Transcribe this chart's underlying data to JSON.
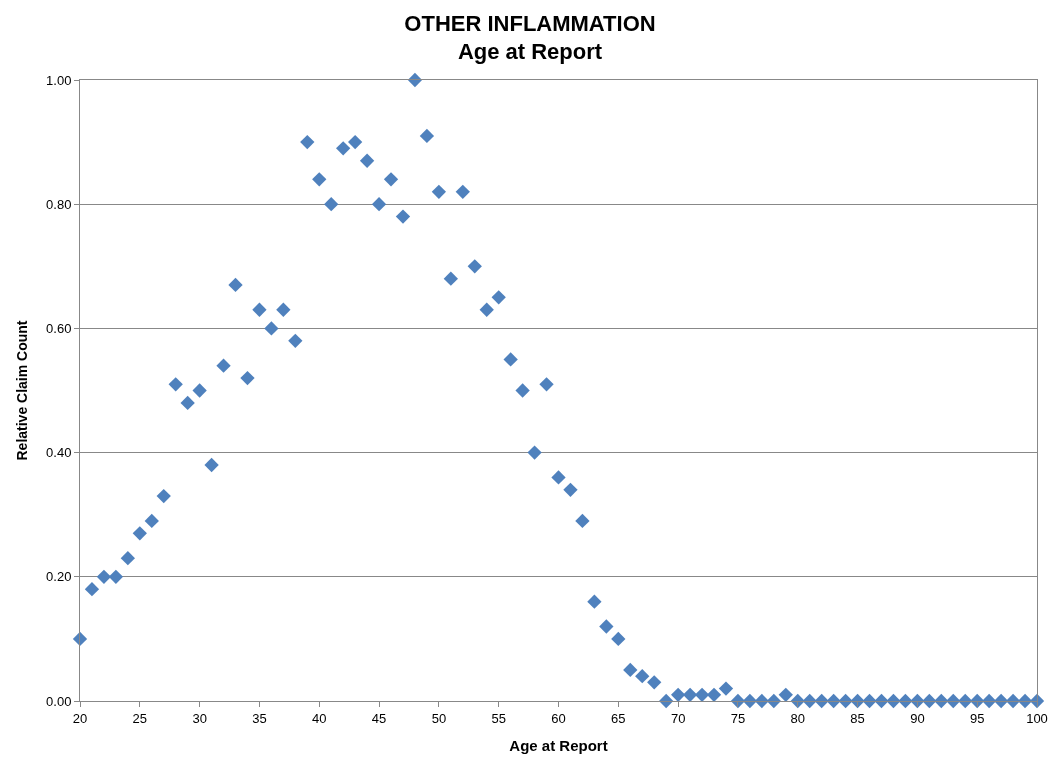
{
  "chart_data": {
    "type": "scatter",
    "title": "OTHER INFLAMMATION\nAge at Report",
    "xlabel": "Age at Report",
    "ylabel": "Relative Claim Count",
    "x": [
      20,
      21,
      22,
      23,
      24,
      25,
      26,
      27,
      28,
      29,
      30,
      31,
      32,
      33,
      34,
      35,
      36,
      37,
      38,
      39,
      40,
      41,
      42,
      43,
      44,
      45,
      46,
      47,
      48,
      49,
      50,
      51,
      52,
      53,
      54,
      55,
      56,
      57,
      58,
      59,
      60,
      61,
      62,
      63,
      64,
      65,
      66,
      67,
      68,
      69,
      70,
      71,
      72,
      73,
      74,
      75,
      76,
      77,
      78,
      79,
      80,
      81,
      82,
      83,
      84,
      85,
      86,
      87,
      88,
      89,
      90,
      91,
      92,
      93,
      94,
      95,
      96,
      97,
      98,
      99,
      100
    ],
    "series": [
      {
        "color": "#4f81bd",
        "values": [
          0.1,
          0.18,
          0.2,
          0.2,
          0.23,
          0.27,
          0.29,
          0.33,
          0.51,
          0.48,
          0.5,
          0.38,
          0.54,
          0.67,
          0.52,
          0.63,
          0.6,
          0.63,
          0.58,
          0.9,
          0.84,
          0.8,
          0.89,
          0.9,
          0.87,
          0.8,
          0.84,
          0.78,
          1.0,
          0.91,
          0.82,
          0.68,
          0.82,
          0.7,
          0.63,
          0.65,
          0.55,
          0.5,
          0.4,
          0.51,
          0.36,
          0.34,
          0.29,
          0.16,
          0.12,
          0.1,
          0.05,
          0.04,
          0.03,
          0.0,
          0.01,
          0.01,
          0.01,
          0.01,
          0.02,
          0.0,
          0.0,
          0.0,
          0.0,
          0.01,
          0.0,
          0.0,
          0.0,
          0.0,
          0.0,
          0.0,
          0.0,
          0.0,
          0.0,
          0.0,
          0.0,
          0.0,
          0.0,
          0.0,
          0.0,
          0.0,
          0.0,
          0.0,
          0.0,
          0.0,
          0.0
        ]
      }
    ],
    "xlim": [
      20,
      100
    ],
    "xticks": [
      20,
      25,
      30,
      35,
      40,
      45,
      50,
      55,
      60,
      65,
      70,
      75,
      80,
      85,
      90,
      95,
      100
    ],
    "ylim": [
      0,
      1
    ],
    "yticks": [
      {
        "value": 0,
        "label": "0.00"
      },
      {
        "value": 0.2,
        "label": "0.20"
      },
      {
        "value": 0.4,
        "label": "0.40"
      },
      {
        "value": 0.6,
        "label": "0.60"
      },
      {
        "value": 0.8,
        "label": "0.80"
      },
      {
        "value": 1,
        "label": "1.00"
      }
    ],
    "grid": "y",
    "marker": "diamond",
    "legend": false
  }
}
